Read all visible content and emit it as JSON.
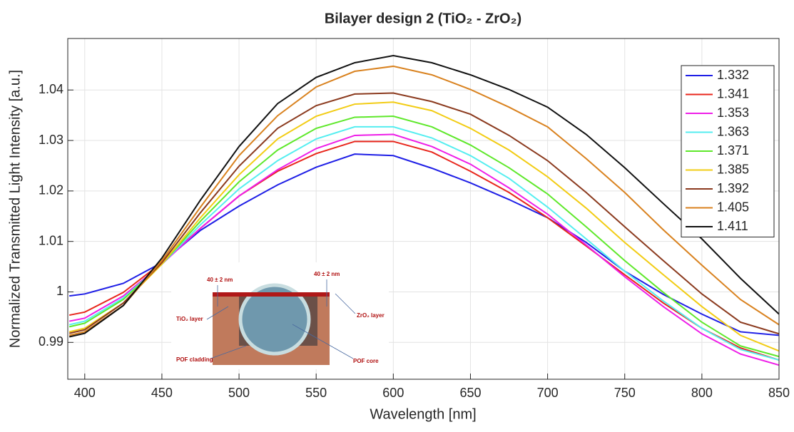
{
  "chart_data": {
    "type": "line",
    "title": "Bilayer design 2 (TiO₂ - ZrO₂)",
    "x_label": "Wavelength [nm]",
    "y_label": "Normalized Transmitted Light Intensity [a.u.]",
    "x": [
      390,
      400,
      425,
      450,
      475,
      500,
      525,
      550,
      575,
      600,
      625,
      650,
      675,
      700,
      725,
      750,
      775,
      800,
      825,
      850
    ],
    "series": [
      {
        "name": "1.332",
        "color": "#1f1fe6",
        "values": [
          0.9992,
          0.9996,
          1.0017,
          1.0058,
          1.0122,
          1.017,
          1.0212,
          1.0247,
          1.0273,
          1.027,
          1.0245,
          1.0216,
          1.0183,
          1.0147,
          1.0098,
          1.0041,
          0.9995,
          0.9956,
          0.9921,
          0.9914
        ]
      },
      {
        "name": "1.341",
        "color": "#e8261c",
        "values": [
          0.9954,
          0.996,
          0.9999,
          1.0058,
          1.0126,
          1.019,
          1.0239,
          1.0274,
          1.0298,
          1.0298,
          1.0277,
          1.0239,
          1.0197,
          1.0147,
          1.0091,
          1.0034,
          0.9978,
          0.9928,
          0.9889,
          0.9865
        ]
      },
      {
        "name": "1.353",
        "color": "#ee1ee8",
        "values": [
          0.9942,
          0.9948,
          0.9992,
          1.0055,
          1.0126,
          1.019,
          1.0242,
          1.0284,
          1.031,
          1.0312,
          1.0288,
          1.0253,
          1.0206,
          1.0154,
          1.0093,
          1.003,
          0.9971,
          0.9917,
          0.9877,
          0.9855
        ]
      },
      {
        "name": "1.363",
        "color": "#55eef0",
        "values": [
          0.9935,
          0.9942,
          0.9988,
          1.0055,
          1.0133,
          1.0204,
          1.026,
          1.0303,
          1.0327,
          1.0327,
          1.0305,
          1.027,
          1.0225,
          1.0168,
          1.0105,
          1.0041,
          0.9982,
          0.9928,
          0.9886,
          0.9865
        ]
      },
      {
        "name": "1.371",
        "color": "#5ee82a",
        "values": [
          0.9931,
          0.9938,
          0.9985,
          1.0055,
          1.014,
          1.0218,
          1.0281,
          1.0324,
          1.0346,
          1.0348,
          1.0327,
          1.0291,
          1.0246,
          1.0194,
          1.0129,
          1.0062,
          0.9999,
          0.994,
          0.9893,
          0.9872
        ]
      },
      {
        "name": "1.385",
        "color": "#f2cc14",
        "values": [
          0.9921,
          0.9928,
          0.9978,
          1.0055,
          1.0147,
          1.0232,
          1.0303,
          1.0348,
          1.0372,
          1.0376,
          1.0359,
          1.0324,
          1.0281,
          1.0228,
          1.0166,
          1.0098,
          1.0034,
          0.9971,
          0.9914,
          0.9883
        ]
      },
      {
        "name": "1.392",
        "color": "#8b3a1e",
        "values": [
          0.9918,
          0.9925,
          0.9978,
          1.0058,
          1.0157,
          1.0249,
          1.0324,
          1.0369,
          1.0392,
          1.0394,
          1.0377,
          1.0352,
          1.031,
          1.026,
          1.0197,
          1.0129,
          1.0062,
          0.9996,
          0.994,
          0.9917
        ]
      },
      {
        "name": "1.405",
        "color": "#d9821f",
        "values": [
          0.9914,
          0.9921,
          0.9973,
          1.0062,
          1.0168,
          1.027,
          1.0349,
          1.0406,
          1.0437,
          1.0447,
          1.043,
          1.0401,
          1.0366,
          1.0327,
          1.0264,
          1.0197,
          1.0123,
          1.0053,
          0.9985,
          0.9935
        ]
      },
      {
        "name": "1.411",
        "color": "#111111",
        "values": [
          0.9911,
          0.9918,
          0.9973,
          1.0067,
          1.0182,
          1.0288,
          1.0373,
          1.0425,
          1.0454,
          1.0468,
          1.0454,
          1.043,
          1.0401,
          1.0366,
          1.0312,
          1.0246,
          1.0175,
          1.0105,
          1.0027,
          0.9956
        ]
      }
    ],
    "xlim": [
      389,
      850
    ],
    "ylim": [
      0.9827,
      1.0502
    ],
    "xticks": [
      400,
      450,
      500,
      550,
      600,
      650,
      700,
      750,
      800,
      850
    ],
    "yticks": [
      0.99,
      1,
      1.01,
      1.02,
      1.03,
      1.04
    ],
    "grid": true,
    "legend": "northeast"
  },
  "inset": {
    "thickness_left": "40 ± 2 nm",
    "thickness_right": "40 ± 2 nm",
    "tio2": "TiO₂ layer",
    "zro2": "ZrO₂ layer",
    "cladding": "POF cladding",
    "core": "POF core"
  }
}
